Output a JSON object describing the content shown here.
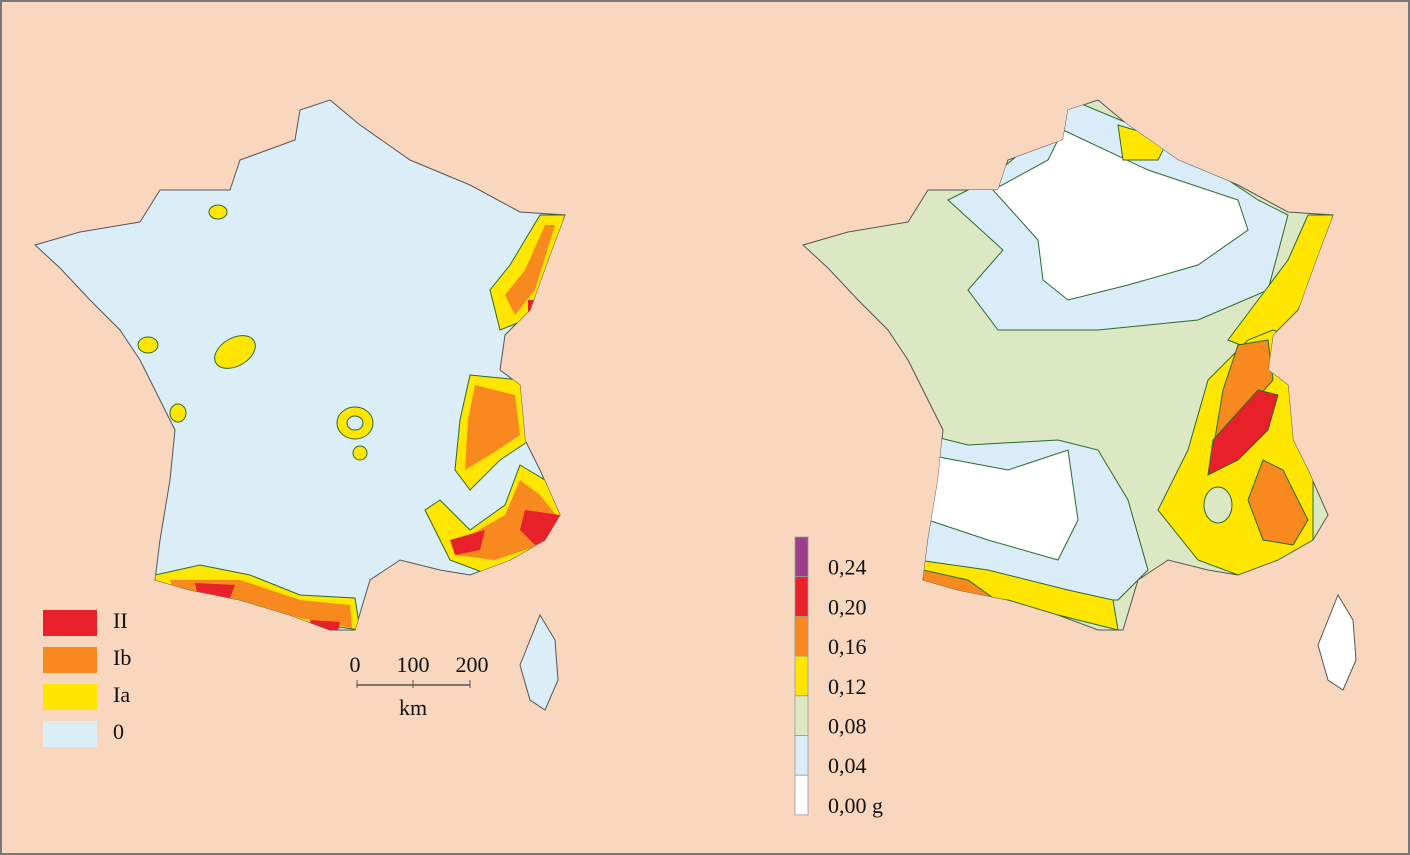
{
  "left_map": {
    "legend": [
      {
        "label": "II",
        "color": "#e8202a"
      },
      {
        "label": "Ib",
        "color": "#f7891f"
      },
      {
        "label": "Ia",
        "color": "#ffe600"
      },
      {
        "label": "0",
        "color": "#dbeef8"
      }
    ],
    "scale": {
      "ticks": [
        "0",
        "100",
        "200"
      ],
      "unit": "km"
    }
  },
  "right_map": {
    "legend": [
      {
        "label": "0,24",
        "color": "#9b3f8a"
      },
      {
        "label": "0,20",
        "color": "#e8202a"
      },
      {
        "label": "0,16",
        "color": "#f7891f"
      },
      {
        "label": "0,12",
        "color": "#ffe600"
      },
      {
        "label": "0,08",
        "color": "#dce8c3"
      },
      {
        "label": "0,04",
        "color": "#d9ecf7"
      },
      {
        "label": "0,00 g",
        "color": "#ffffff"
      }
    ]
  }
}
